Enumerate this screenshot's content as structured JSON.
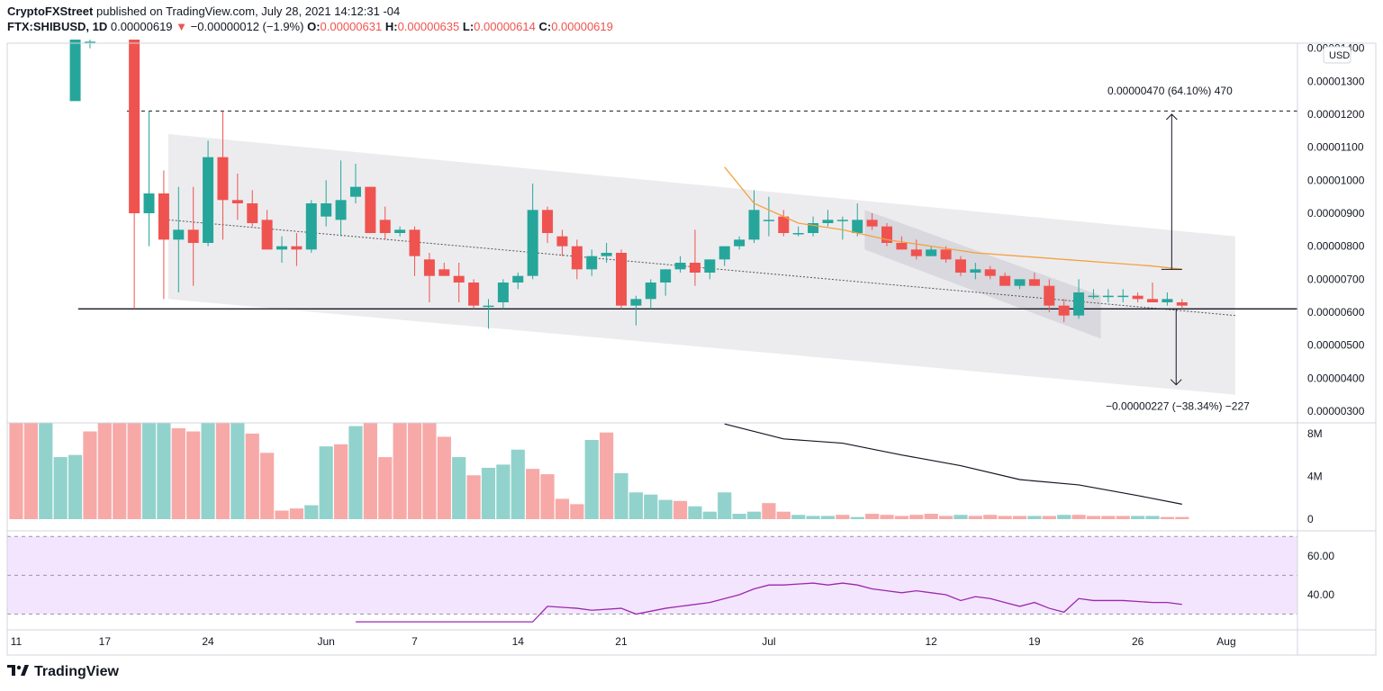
{
  "header": {
    "publisher": "CryptoFXStreet",
    "published_text": "published on TradingView.com, July 28, 2021 14:12:31 -04",
    "symbol": "FTX:SHIBUSD, 1D",
    "last": "0.00000619",
    "change": "−0.00000012 (−1.9%)",
    "o_label": "O:",
    "o_value": "0.00000631",
    "h_label": "H:",
    "h_value": "0.00000635",
    "l_label": "L:",
    "l_value": "0.00000614",
    "c_label": "C:",
    "c_value": "0.00000619"
  },
  "footer": {
    "brand": "TradingView"
  },
  "colors": {
    "up": "#26a69a",
    "down": "#ef5350",
    "up_vol": "#92d2cc",
    "down_vol": "#f7a9a7",
    "ma": "#f5a13c",
    "rsi": "#9c27b0",
    "rsi_band": "#f3e5fd"
  },
  "chart_data": [
    {
      "type": "candlestick",
      "currency": "USD",
      "ylim": [
        2.7e-06,
        1.41e-05
      ],
      "y_ticks": [
        "0.00001400",
        "0.00001300",
        "0.00001200",
        "0.00001100",
        "0.00001000",
        "0.00000900",
        "0.00000800",
        "0.00000700",
        "0.00000600",
        "0.00000500",
        "0.00000400",
        "0.00000300"
      ],
      "x_ticks": [
        [
          "11",
          0
        ],
        [
          "17",
          6
        ],
        [
          "24",
          13
        ],
        [
          "Jun",
          21
        ],
        [
          "7",
          27
        ],
        [
          "14",
          34
        ],
        [
          "21",
          41
        ],
        [
          "Jul",
          51
        ],
        [
          "12",
          62
        ],
        [
          "19",
          69
        ],
        [
          "26",
          76
        ],
        [
          "Aug",
          82
        ]
      ],
      "ohlc": [
        [
          null,
          null,
          null,
          null
        ],
        [
          null,
          null,
          null,
          null
        ],
        [
          null,
          null,
          null,
          null
        ],
        [
          null,
          null,
          null,
          null
        ],
        [
          1.24e-05,
          1.48e-05,
          1.24e-05,
          1.46e-05
        ],
        [
          1.42e-05,
          1.5e-05,
          1.4e-05,
          1.42e-05
        ],
        [
          null,
          null,
          null,
          null
        ],
        [
          null,
          null,
          null,
          null
        ],
        [
          1.46e-05,
          1.48e-05,
          6.1e-06,
          9e-06
        ],
        [
          9e-06,
          1.21e-05,
          8e-06,
          9.6e-06
        ],
        [
          9.6e-06,
          1.03e-05,
          6.4e-06,
          8.2e-06
        ],
        [
          8.2e-06,
          9.8e-06,
          6.6e-06,
          8.5e-06
        ],
        [
          8.5e-06,
          9.8e-06,
          6.8e-06,
          8.1e-06
        ],
        [
          8.1e-06,
          1.12e-05,
          8e-06,
          1.07e-05
        ],
        [
          1.07e-05,
          1.21e-05,
          8.2e-06,
          9.4e-06
        ],
        [
          9.4e-06,
          1.02e-05,
          8.8e-06,
          9.3e-06
        ],
        [
          9.3e-06,
          9.7e-06,
          8.6e-06,
          8.7e-06
        ],
        [
          8.8e-06,
          9.1e-06,
          7.9e-06,
          7.9e-06
        ],
        [
          7.9e-06,
          8.3e-06,
          7.5e-06,
          8e-06
        ],
        [
          8e-06,
          8.4e-06,
          7.4e-06,
          7.9e-06
        ],
        [
          7.9e-06,
          9.4e-06,
          7.8e-06,
          9.3e-06
        ],
        [
          8.9e-06,
          1e-05,
          8.6e-06,
          9.3e-06
        ],
        [
          8.8e-06,
          1.06e-05,
          8.3e-06,
          9.4e-06
        ],
        [
          9.5e-06,
          1.05e-05,
          9.3e-06,
          9.8e-06
        ],
        [
          9.8e-06,
          9.8e-06,
          8.4e-06,
          8.4e-06
        ],
        [
          8.8e-06,
          9.2e-06,
          8.2e-06,
          8.4e-06
        ],
        [
          8.4e-06,
          8.6e-06,
          8.3e-06,
          8.5e-06
        ],
        [
          8.5e-06,
          8.6e-06,
          7.1e-06,
          7.7e-06
        ],
        [
          7.6e-06,
          7.8e-06,
          6.3e-06,
          7.1e-06
        ],
        [
          7.3e-06,
          7.5e-06,
          7.1e-06,
          7.1e-06
        ],
        [
          7.1e-06,
          7.5e-06,
          6.3e-06,
          6.9e-06
        ],
        [
          6.9e-06,
          7e-06,
          6.1e-06,
          6.2e-06
        ],
        [
          6.2e-06,
          6.4e-06,
          5.5e-06,
          6.2e-06
        ],
        [
          6.3e-06,
          7e-06,
          6.1e-06,
          6.9e-06
        ],
        [
          6.9e-06,
          7.2e-06,
          6.7e-06,
          7.1e-06
        ],
        [
          7.1e-06,
          9.9e-06,
          7e-06,
          9.1e-06
        ],
        [
          9.1e-06,
          9.2e-06,
          8.1e-06,
          8.4e-06
        ],
        [
          8.3e-06,
          8.5e-06,
          7.7e-06,
          8e-06
        ],
        [
          8e-06,
          8.2e-06,
          7e-06,
          7.3e-06
        ],
        [
          7.3e-06,
          7.9e-06,
          7.1e-06,
          7.7e-06
        ],
        [
          7.7e-06,
          8.1e-06,
          7.5e-06,
          7.8e-06
        ],
        [
          7.8e-06,
          7.9e-06,
          6.1e-06,
          6.2e-06
        ],
        [
          6.2e-06,
          6.5e-06,
          5.6e-06,
          6.4e-06
        ],
        [
          6.4e-06,
          7e-06,
          6.1e-06,
          6.9e-06
        ],
        [
          6.9e-06,
          7.3e-06,
          6.5e-06,
          7.3e-06
        ],
        [
          7.3e-06,
          7.7e-06,
          7.2e-06,
          7.5e-06
        ],
        [
          7.5e-06,
          8.5e-06,
          6.8e-06,
          7.2e-06
        ],
        [
          7.2e-06,
          7.6e-06,
          7e-06,
          7.6e-06
        ],
        [
          7.6e-06,
          8e-06,
          7.4e-06,
          8e-06
        ],
        [
          8e-06,
          8.3e-06,
          7.9e-06,
          8.2e-06
        ],
        [
          8.2e-06,
          9.7e-06,
          8.1e-06,
          9.1e-06
        ],
        [
          8.8e-06,
          9.5e-06,
          8.3e-06,
          8.8e-06
        ],
        [
          8.9e-06,
          9.1e-06,
          8.3e-06,
          8.4e-06
        ],
        [
          8.4e-06,
          8.6e-06,
          8.3e-06,
          8.4e-06
        ],
        [
          8.4e-06,
          8.9e-06,
          8.3e-06,
          8.7e-06
        ],
        [
          8.7e-06,
          9.1e-06,
          8.6e-06,
          8.8e-06
        ],
        [
          8.8e-06,
          8.9e-06,
          8.2e-06,
          8.8e-06
        ],
        [
          8.4e-06,
          9.3e-06,
          8.3e-06,
          8.8e-06
        ],
        [
          8.8e-06,
          9e-06,
          8.5e-06,
          8.6e-06
        ],
        [
          8.6e-06,
          8.7e-06,
          8e-06,
          8.1e-06
        ],
        [
          8.1e-06,
          8.3e-06,
          7.9e-06,
          7.9e-06
        ],
        [
          7.9e-06,
          8.2e-06,
          7.6e-06,
          7.7e-06
        ],
        [
          7.7e-06,
          8e-06,
          7.7e-06,
          7.9e-06
        ],
        [
          7.9e-06,
          8e-06,
          7.5e-06,
          7.6e-06
        ],
        [
          7.6e-06,
          7.7e-06,
          7.1e-06,
          7.2e-06
        ],
        [
          7.2e-06,
          7.5e-06,
          7e-06,
          7.3e-06
        ],
        [
          7.3e-06,
          7.4e-06,
          7e-06,
          7.1e-06
        ],
        [
          7.1e-06,
          7.2e-06,
          6.8e-06,
          6.8e-06
        ],
        [
          6.8e-06,
          7e-06,
          6.7e-06,
          7e-06
        ],
        [
          7e-06,
          7.2e-06,
          6.8e-06,
          6.8e-06
        ],
        [
          6.8e-06,
          7e-06,
          6e-06,
          6.2e-06
        ],
        [
          6.2e-06,
          6.4e-06,
          5.7e-06,
          5.9e-06
        ],
        [
          5.9e-06,
          7e-06,
          5.8e-06,
          6.6e-06
        ],
        [
          6.5e-06,
          6.7e-06,
          6.4e-06,
          6.5e-06
        ],
        [
          6.5e-06,
          6.7e-06,
          6.3e-06,
          6.5e-06
        ],
        [
          6.5e-06,
          6.7e-06,
          6.3e-06,
          6.5e-06
        ],
        [
          6.5e-06,
          6.6e-06,
          6.3e-06,
          6.4e-06
        ],
        [
          6.4e-06,
          6.9e-06,
          6.3e-06,
          6.3e-06
        ],
        [
          6.3e-06,
          6.6e-06,
          6.2e-06,
          6.4e-06
        ],
        [
          6.3e-06,
          6.4e-06,
          6.1e-06,
          6.2e-06
        ]
      ],
      "moving_average": [
        [
          48,
          1.04e-05
        ],
        [
          50,
          9.3e-06
        ],
        [
          53,
          8.7e-06
        ],
        [
          56,
          8.5e-06
        ],
        [
          59,
          8.2e-06
        ],
        [
          62,
          8e-06
        ],
        [
          65,
          7.8e-06
        ],
        [
          68,
          7.7e-06
        ],
        [
          71,
          7.6e-06
        ],
        [
          74,
          7.5e-06
        ],
        [
          77,
          7.4e-06
        ],
        [
          79,
          7.3e-06
        ]
      ],
      "support_line": {
        "y": 6.1e-06
      },
      "resistance_line": {
        "y": 1.21e-05
      },
      "measure_up": {
        "text": "0.00000470 (64.10%) 470",
        "from": 7.3e-06,
        "to": 1.2e-05
      },
      "measure_down": {
        "text": "−0.00000227 (−38.34%) −227",
        "from": 6.1e-06,
        "to": 3.8e-06
      }
    },
    {
      "type": "bar",
      "name": "Volume",
      "ylim": [
        0,
        9000000
      ],
      "y_ticks": [
        "8M",
        "4M",
        "0"
      ],
      "up_flags": [
        0,
        0,
        1,
        1,
        1,
        0,
        0,
        0,
        0,
        1,
        1,
        0,
        0,
        1,
        0,
        1,
        0,
        0,
        0,
        0,
        1,
        1,
        0,
        1,
        0,
        0,
        0,
        0,
        0,
        0,
        1,
        0,
        1,
        1,
        1,
        0,
        0,
        0,
        0,
        1,
        0,
        1,
        1,
        1,
        1,
        0,
        1,
        1,
        1,
        1,
        1,
        0,
        0,
        1,
        1,
        1,
        0,
        1,
        0,
        0,
        0,
        0,
        0,
        0,
        1,
        0,
        0,
        0,
        0,
        1,
        0,
        1,
        0,
        0,
        0,
        0,
        1,
        1,
        0,
        0
      ],
      "volume": [
        9000000,
        9000000,
        9000000,
        5800000,
        6000000,
        8200000,
        9000000,
        9000000,
        9000000,
        9000000,
        9000000,
        8500000,
        8200000,
        9000000,
        9000000,
        9000000,
        8000000,
        6200000,
        800000,
        1000000,
        1300000,
        6800000,
        7000000,
        8700000,
        9000000,
        5800000,
        9000000,
        9000000,
        9000000,
        7700000,
        5800000,
        4100000,
        4800000,
        5100000,
        6500000,
        4700000,
        4200000,
        1900000,
        1400000,
        7400000,
        8100000,
        4300000,
        2500000,
        2300000,
        1800000,
        1700000,
        1200000,
        700000,
        2500000,
        500000,
        700000,
        1500000,
        700000,
        400000,
        300000,
        300000,
        400000,
        200000,
        500000,
        400000,
        300000,
        400000,
        500000,
        300000,
        400000,
        300000,
        400000,
        300000,
        300000,
        300000,
        300000,
        400000,
        400000,
        300000,
        300000,
        300000,
        300000,
        300000,
        200000,
        200000
      ],
      "vol_ma": [
        [
          48,
          8900000
        ],
        [
          52,
          7500000
        ],
        [
          56,
          7100000
        ],
        [
          60,
          6000000
        ],
        [
          64,
          5000000
        ],
        [
          68,
          3700000
        ],
        [
          72,
          3200000
        ],
        [
          76,
          2200000
        ],
        [
          79,
          1400000
        ]
      ]
    },
    {
      "type": "line",
      "name": "RSI",
      "ylim": [
        27,
        72
      ],
      "y_ticks": [
        "60.00",
        "40.00"
      ],
      "levels": [
        70,
        50,
        30
      ],
      "points": [
        [
          23,
          26
        ],
        [
          35,
          26
        ],
        [
          36,
          34
        ],
        [
          38,
          33
        ],
        [
          39,
          32
        ],
        [
          41,
          33
        ],
        [
          42,
          30
        ],
        [
          44,
          33
        ],
        [
          45,
          34
        ],
        [
          47,
          36
        ],
        [
          49,
          40
        ],
        [
          50,
          43
        ],
        [
          51,
          45
        ],
        [
          52,
          45
        ],
        [
          54,
          46
        ],
        [
          55,
          45
        ],
        [
          56,
          46
        ],
        [
          57,
          45
        ],
        [
          58,
          43
        ],
        [
          59,
          42
        ],
        [
          60,
          41
        ],
        [
          61,
          42
        ],
        [
          62,
          41
        ],
        [
          63,
          40
        ],
        [
          64,
          37
        ],
        [
          65,
          39
        ],
        [
          66,
          38
        ],
        [
          67,
          36
        ],
        [
          68,
          34
        ],
        [
          69,
          36
        ],
        [
          70,
          33
        ],
        [
          71,
          31
        ],
        [
          72,
          38
        ],
        [
          73,
          37
        ],
        [
          75,
          37
        ],
        [
          77,
          36
        ],
        [
          78,
          36
        ],
        [
          79,
          35
        ]
      ]
    }
  ]
}
